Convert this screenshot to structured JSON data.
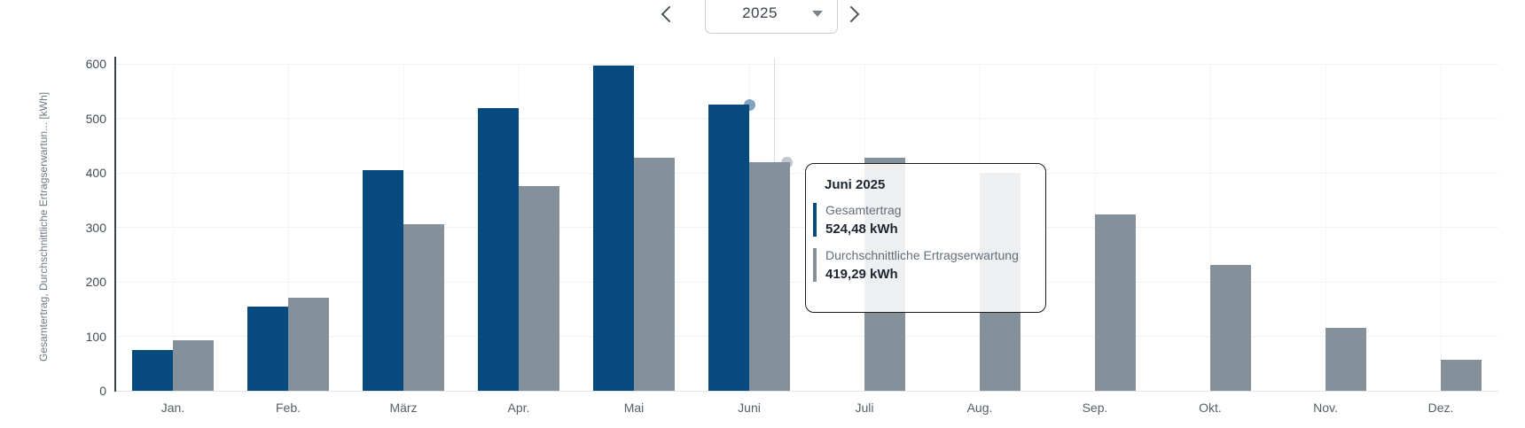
{
  "header": {
    "year_selector": {
      "year": "2025"
    }
  },
  "chart_data": {
    "type": "bar",
    "categories": [
      "Jan.",
      "Feb.",
      "März",
      "Apr.",
      "Mai",
      "Juni",
      "Juli",
      "Aug.",
      "Sep.",
      "Okt.",
      "Nov.",
      "Dez."
    ],
    "series": [
      {
        "name": "Gesamtertrag",
        "color": "#074A7D",
        "values": [
          75,
          155,
          405,
          518,
          597,
          524.48,
          null,
          null,
          null,
          null,
          null,
          null
        ]
      },
      {
        "name": "Durchschnittliche Ertragserwartung",
        "color": "#84909A",
        "values": [
          92,
          170,
          305,
          376,
          427,
          419.29,
          427,
          400,
          324,
          231,
          116,
          57
        ]
      }
    ],
    "ylabel": "Gesamtertrag, Durchschnittliche Ertragserwartun... [kWh]",
    "xlabel": "",
    "yticks": [
      0,
      100,
      200,
      300,
      400,
      500,
      600
    ],
    "ylim": [
      0,
      600
    ],
    "grid": true,
    "legend_position": "none",
    "hovered_index": 5
  },
  "tooltip": {
    "title": "Juni 2025",
    "rows": [
      {
        "label": "Gesamtertrag",
        "value": "524,48 kWh",
        "color": "#074A7D"
      },
      {
        "label": "Durchschnittliche Ertragserwartung",
        "value": "419,29 kWh",
        "color": "#84909A"
      }
    ]
  }
}
